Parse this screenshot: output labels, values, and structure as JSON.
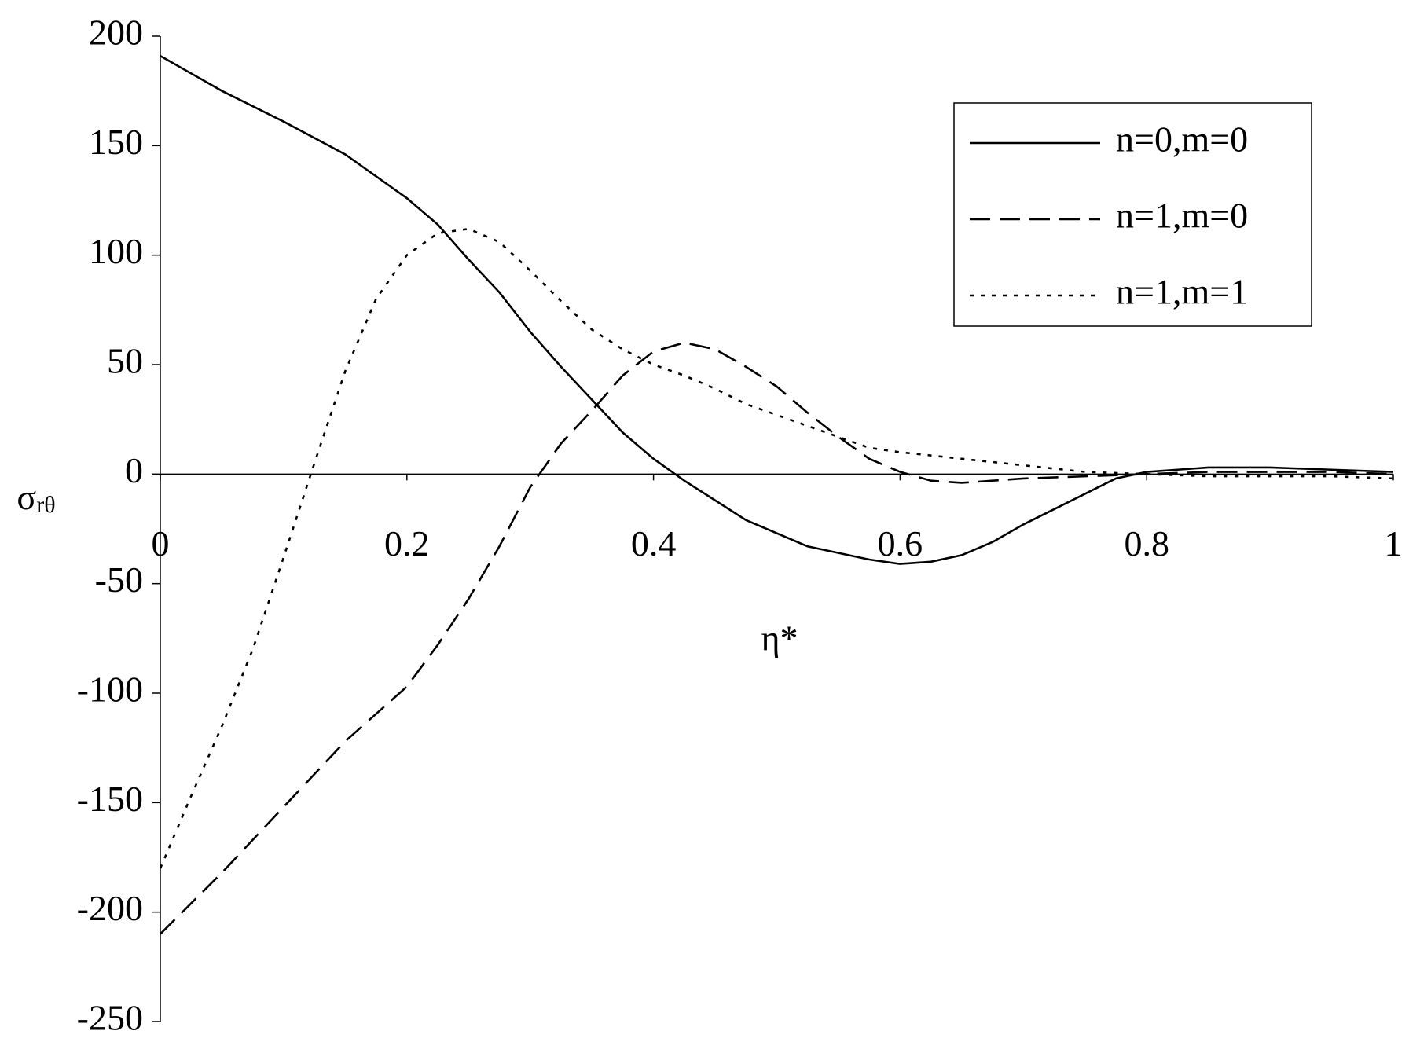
{
  "chart_data": {
    "type": "line",
    "xlabel": "η*",
    "ylabel": "σ",
    "ylabel_subscript": "rθ",
    "xlim": [
      0,
      1
    ],
    "ylim": [
      -250,
      200
    ],
    "xticks": [
      0,
      0.2,
      0.4,
      0.6,
      0.8,
      1
    ],
    "yticks": [
      -250,
      -200,
      -150,
      -100,
      -50,
      0,
      50,
      100,
      150,
      200
    ],
    "legend": "upper right",
    "series": [
      {
        "name": "n=0,m=0",
        "color": "#000000",
        "style": "solid",
        "x": [
          0,
          0.05,
          0.1,
          0.15,
          0.2,
          0.225,
          0.25,
          0.275,
          0.3,
          0.325,
          0.35,
          0.375,
          0.4,
          0.425,
          0.45,
          0.475,
          0.5,
          0.525,
          0.55,
          0.575,
          0.6,
          0.625,
          0.65,
          0.675,
          0.7,
          0.725,
          0.75,
          0.775,
          0.8,
          0.825,
          0.85,
          0.875,
          0.9,
          0.95,
          1
        ],
        "values": [
          191,
          175,
          161,
          146,
          126,
          114,
          98,
          83,
          65,
          49,
          34,
          19,
          7,
          -3,
          -12,
          -21,
          -27,
          -33,
          -36,
          -39,
          -41,
          -40,
          -37,
          -31,
          -23,
          -16,
          -9,
          -2,
          1,
          2,
          3,
          3,
          3,
          2,
          1
        ]
      },
      {
        "name": "n=1,m=0",
        "color": "#000000",
        "style": "dashed",
        "x": [
          0,
          0.05,
          0.1,
          0.15,
          0.2,
          0.225,
          0.25,
          0.275,
          0.3,
          0.325,
          0.35,
          0.375,
          0.4,
          0.425,
          0.45,
          0.475,
          0.5,
          0.525,
          0.55,
          0.575,
          0.6,
          0.625,
          0.65,
          0.675,
          0.7,
          0.75,
          0.8,
          0.85,
          0.9,
          0.95,
          1
        ],
        "values": [
          -210,
          -182,
          -152,
          -122,
          -97,
          -78,
          -57,
          -33,
          -6,
          14,
          29,
          45,
          56,
          60,
          57,
          49,
          40,
          28,
          17,
          7,
          1,
          -3,
          -4,
          -3,
          -2,
          -1,
          0,
          1,
          1,
          1,
          0
        ]
      },
      {
        "name": "n=1,m=1",
        "color": "#000000",
        "style": "dotted",
        "x": [
          0,
          0.025,
          0.05,
          0.075,
          0.1,
          0.125,
          0.15,
          0.175,
          0.2,
          0.225,
          0.25,
          0.275,
          0.3,
          0.325,
          0.35,
          0.375,
          0.4,
          0.425,
          0.45,
          0.475,
          0.5,
          0.525,
          0.55,
          0.575,
          0.6,
          0.65,
          0.7,
          0.75,
          0.8,
          0.85,
          0.9,
          0.95,
          1
        ],
        "values": [
          -180,
          -147,
          -115,
          -80,
          -38,
          5,
          47,
          80,
          100,
          110,
          112,
          106,
          93,
          79,
          66,
          57,
          50,
          45,
          39,
          32,
          27,
          22,
          17,
          12,
          10,
          7,
          4,
          1,
          0,
          -1,
          -1,
          -1,
          -2
        ]
      }
    ]
  }
}
